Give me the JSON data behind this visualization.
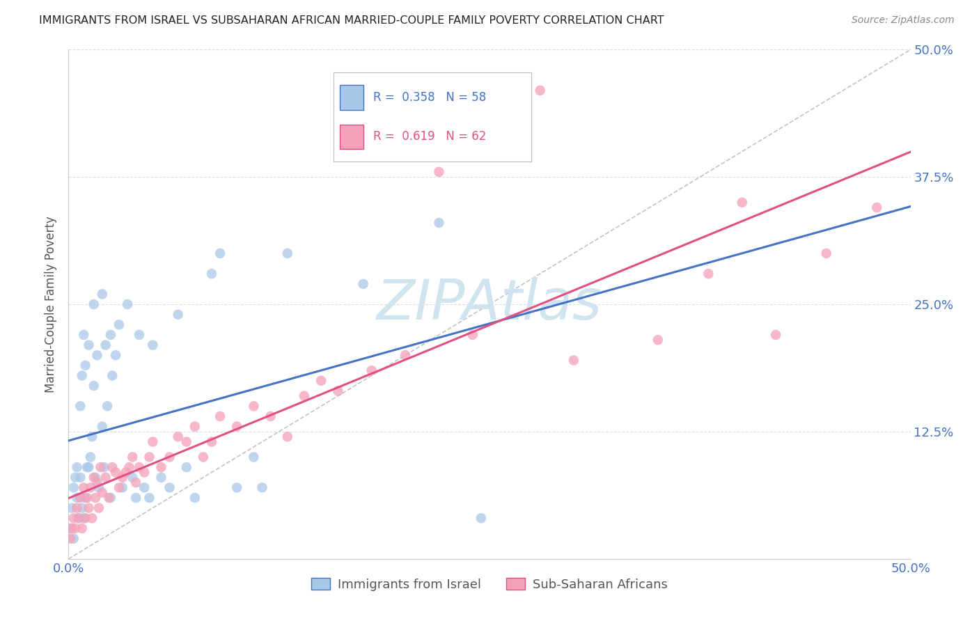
{
  "title": "IMMIGRANTS FROM ISRAEL VS SUBSAHARAN AFRICAN MARRIED-COUPLE FAMILY POVERTY CORRELATION CHART",
  "source": "Source: ZipAtlas.com",
  "ylabel": "Married-Couple Family Poverty",
  "xlim": [
    0,
    0.5
  ],
  "ylim": [
    0,
    0.5
  ],
  "series1_name": "Immigrants from Israel",
  "series1_color": "#a8c8e8",
  "series1_line_color": "#4472c4",
  "series1_R": 0.358,
  "series1_N": 58,
  "series2_name": "Sub-Saharan Africans",
  "series2_color": "#f4a0b8",
  "series2_line_color": "#e05080",
  "series2_R": 0.619,
  "series2_N": 62,
  "watermark": "ZIPAtlas",
  "watermark_color": "#d0e4f0",
  "background_color": "#ffffff",
  "grid_color": "#dddddd",
  "title_color": "#222222",
  "axis_label_color": "#555555",
  "tick_label_color": "#4472c4",
  "israel_x": [
    0.001,
    0.002,
    0.003,
    0.003,
    0.004,
    0.005,
    0.005,
    0.006,
    0.007,
    0.007,
    0.008,
    0.008,
    0.009,
    0.009,
    0.01,
    0.01,
    0.011,
    0.012,
    0.012,
    0.013,
    0.014,
    0.015,
    0.016,
    0.017,
    0.018,
    0.02,
    0.021,
    0.022,
    0.023,
    0.025,
    0.026,
    0.028,
    0.03,
    0.032,
    0.035,
    0.038,
    0.04,
    0.042,
    0.045,
    0.048,
    0.05,
    0.055,
    0.06,
    0.065,
    0.07,
    0.075,
    0.085,
    0.09,
    0.1,
    0.11,
    0.115,
    0.13,
    0.175,
    0.22,
    0.245,
    0.015,
    0.02,
    0.025
  ],
  "israel_y": [
    0.03,
    0.05,
    0.07,
    0.02,
    0.08,
    0.06,
    0.09,
    0.04,
    0.08,
    0.15,
    0.05,
    0.18,
    0.04,
    0.22,
    0.06,
    0.19,
    0.09,
    0.09,
    0.21,
    0.1,
    0.12,
    0.25,
    0.08,
    0.2,
    0.07,
    0.13,
    0.09,
    0.21,
    0.15,
    0.06,
    0.18,
    0.2,
    0.23,
    0.07,
    0.25,
    0.08,
    0.06,
    0.22,
    0.07,
    0.06,
    0.21,
    0.08,
    0.07,
    0.24,
    0.09,
    0.06,
    0.28,
    0.3,
    0.07,
    0.1,
    0.07,
    0.3,
    0.27,
    0.33,
    0.04,
    0.17,
    0.26,
    0.22
  ],
  "subsaharan_x": [
    0.001,
    0.002,
    0.003,
    0.004,
    0.005,
    0.006,
    0.007,
    0.008,
    0.009,
    0.01,
    0.011,
    0.012,
    0.013,
    0.014,
    0.015,
    0.016,
    0.017,
    0.018,
    0.019,
    0.02,
    0.022,
    0.024,
    0.026,
    0.028,
    0.03,
    0.032,
    0.034,
    0.036,
    0.038,
    0.04,
    0.042,
    0.045,
    0.048,
    0.05,
    0.055,
    0.06,
    0.065,
    0.07,
    0.075,
    0.08,
    0.085,
    0.09,
    0.1,
    0.11,
    0.12,
    0.13,
    0.14,
    0.15,
    0.16,
    0.18,
    0.2,
    0.22,
    0.24,
    0.26,
    0.28,
    0.3,
    0.35,
    0.38,
    0.4,
    0.42,
    0.45,
    0.48
  ],
  "subsaharan_y": [
    0.02,
    0.03,
    0.04,
    0.03,
    0.05,
    0.04,
    0.06,
    0.03,
    0.07,
    0.04,
    0.06,
    0.05,
    0.07,
    0.04,
    0.08,
    0.06,
    0.075,
    0.05,
    0.09,
    0.065,
    0.08,
    0.06,
    0.09,
    0.085,
    0.07,
    0.08,
    0.085,
    0.09,
    0.1,
    0.075,
    0.09,
    0.085,
    0.1,
    0.115,
    0.09,
    0.1,
    0.12,
    0.115,
    0.13,
    0.1,
    0.115,
    0.14,
    0.13,
    0.15,
    0.14,
    0.12,
    0.16,
    0.175,
    0.165,
    0.185,
    0.2,
    0.38,
    0.22,
    0.46,
    0.46,
    0.195,
    0.215,
    0.28,
    0.35,
    0.22,
    0.3,
    0.345
  ]
}
